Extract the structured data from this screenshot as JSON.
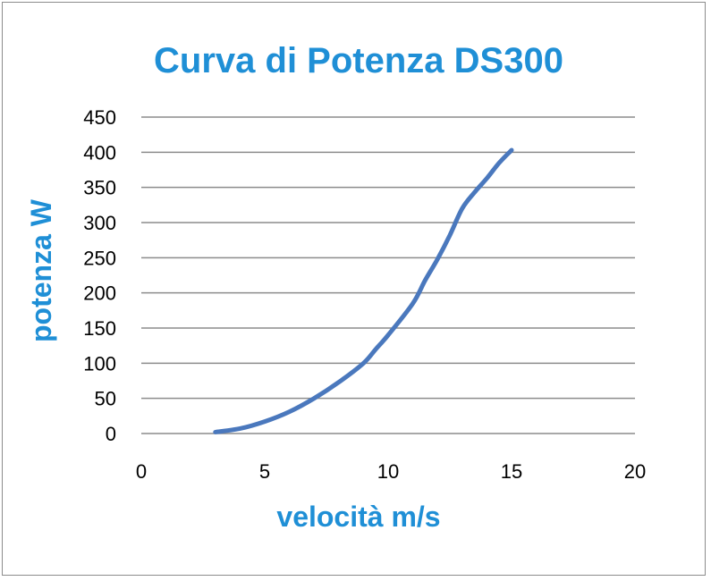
{
  "chart_data": {
    "type": "line",
    "title": "Curva di Potenza DS300",
    "xlabel": "velocità m/s",
    "ylabel": "potenza W",
    "xlim": [
      0,
      20
    ],
    "ylim": [
      0,
      450
    ],
    "x_ticks": [
      "0",
      "5",
      "10",
      "15",
      "20"
    ],
    "y_ticks": [
      "0",
      "50",
      "100",
      "150",
      "200",
      "250",
      "300",
      "350",
      "400",
      "450"
    ],
    "grid": "horizontal",
    "legend": "none",
    "series": [
      {
        "x": [
          3,
          4,
          5,
          6,
          7,
          8,
          9,
          9.5,
          10,
          11,
          11.5,
          12,
          12.5,
          13,
          13.5,
          14,
          14.5,
          15
        ],
        "y": [
          2,
          7,
          17,
          31,
          50,
          73,
          100,
          120,
          140,
          185,
          218,
          248,
          282,
          320,
          343,
          363,
          385,
          403
        ]
      }
    ],
    "colors": {
      "title": "#1f8fd6",
      "axis_title": "#1f8fd6",
      "line": "#4a78bd",
      "grid": "#8c8c8c"
    }
  }
}
